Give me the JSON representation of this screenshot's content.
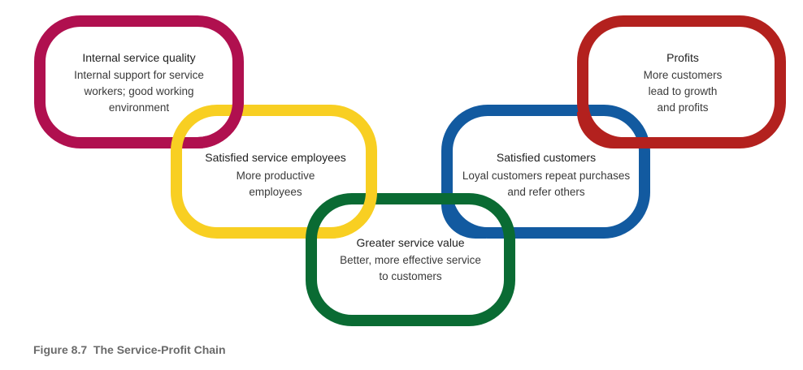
{
  "colors": {
    "internal": "#b0104f",
    "employees": "#f8cf22",
    "value": "#0a6b33",
    "customers": "#125aa0",
    "profits": "#b3211e"
  },
  "links": [
    {
      "id": "internal",
      "title": "Internal service quality",
      "desc": [
        "Internal support for service",
        "workers; good working",
        "environment"
      ]
    },
    {
      "id": "employees",
      "title": "Satisfied service employees",
      "desc": [
        "More productive",
        "employees"
      ]
    },
    {
      "id": "value",
      "title": "Greater service value",
      "desc": [
        "Better, more effective service",
        "to customers"
      ]
    },
    {
      "id": "customers",
      "title": "Satisfied customers",
      "desc": [
        "Loyal customers repeat purchases",
        "and refer others"
      ]
    },
    {
      "id": "profits",
      "title": "Profits",
      "desc": [
        "More customers",
        "lead to growth",
        "and profits"
      ]
    }
  ],
  "caption": "Figure 8.7  The Service-Profit Chain"
}
